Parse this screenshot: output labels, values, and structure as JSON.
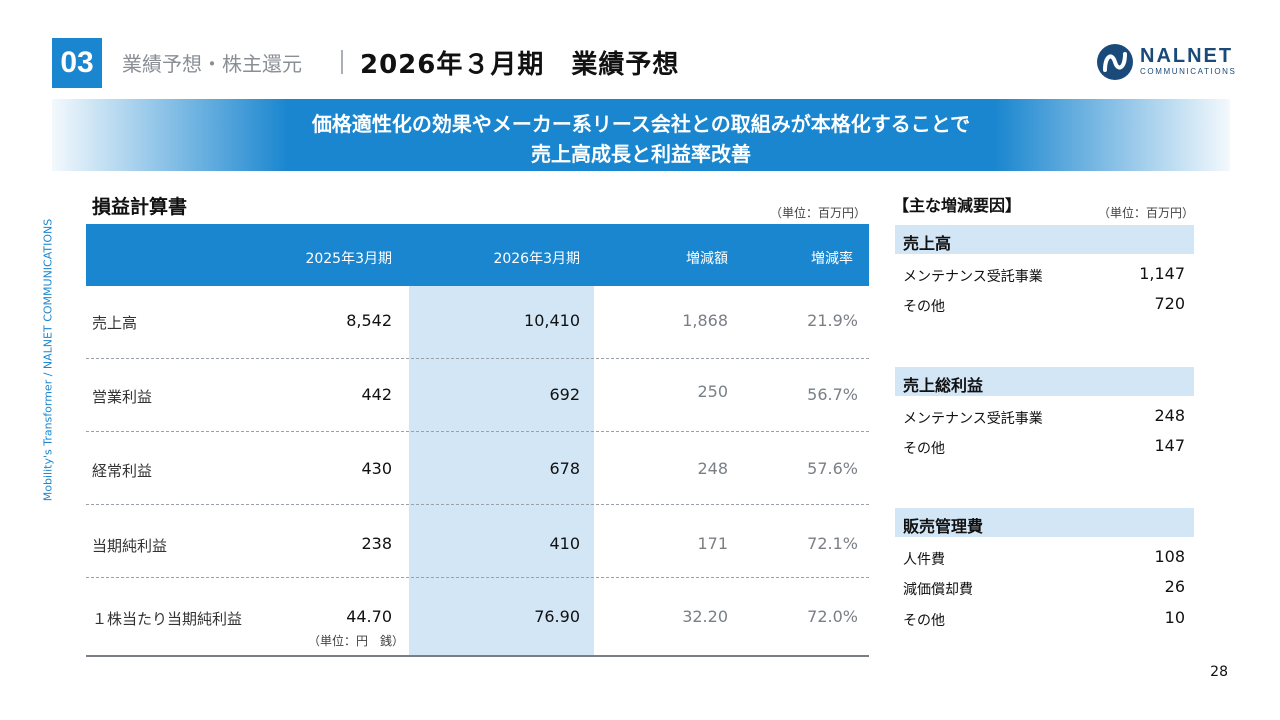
{
  "header": {
    "section_number": "03",
    "section_label": "業績予想・株主還元",
    "page_title": "2026年３月期　業績予想"
  },
  "logo": {
    "wordmark": "NALNET",
    "subtext": "COMMUNICATIONS"
  },
  "banner": {
    "line1": "価格適性化の効果やメーカー系リース会社との取組みが本格化することで",
    "line2": "売上高成長と利益率改善"
  },
  "side_text": "Mobility's Transformer / NALNET COMMUNICATIONS",
  "pl_table": {
    "title": "損益計算書",
    "unit": "（単位：百万円）",
    "headers": [
      "2025年3月期",
      "2026年3月期",
      "増減額",
      "増減率"
    ],
    "rows": [
      {
        "label": "売上高",
        "fy2025": "8,542",
        "fy2026": "10,410",
        "change": "1,868",
        "rate": "21.9%"
      },
      {
        "label": "営業利益",
        "fy2025": "442",
        "fy2026": "692",
        "change": "250",
        "rate": "56.7%"
      },
      {
        "label": "経常利益",
        "fy2025": "430",
        "fy2026": "678",
        "change": "248",
        "rate": "57.6%"
      },
      {
        "label": "当期純利益",
        "fy2025": "238",
        "fy2026": "410",
        "change": "171",
        "rate": "72.1%"
      },
      {
        "label": "１株当たり当期純利益",
        "fy2025": "44.70",
        "fy2026": "76.90",
        "change": "32.20",
        "rate": "72.0%"
      }
    ],
    "eps_unit": "（単位：円　銭）"
  },
  "factors": {
    "title": "【主な増減要因】",
    "unit": "（単位：百万円）",
    "groups": [
      {
        "heading": "売上高",
        "items": [
          {
            "label": "メンテナンス受託事業",
            "value": "1,147"
          },
          {
            "label": "その他",
            "value": "720"
          }
        ]
      },
      {
        "heading": "売上総利益",
        "items": [
          {
            "label": "メンテナンス受託事業",
            "value": "248"
          },
          {
            "label": "その他",
            "value": "147"
          }
        ]
      },
      {
        "heading": "販売管理費",
        "items": [
          {
            "label": "人件費",
            "value": "108"
          },
          {
            "label": "減価償却費",
            "value": "26"
          },
          {
            "label": "その他",
            "value": "10"
          }
        ]
      }
    ]
  },
  "page_number": "28",
  "colors": {
    "accent": "#1a86cf",
    "highlight": "#d3e6f6",
    "logo": "#1a4a7a"
  }
}
